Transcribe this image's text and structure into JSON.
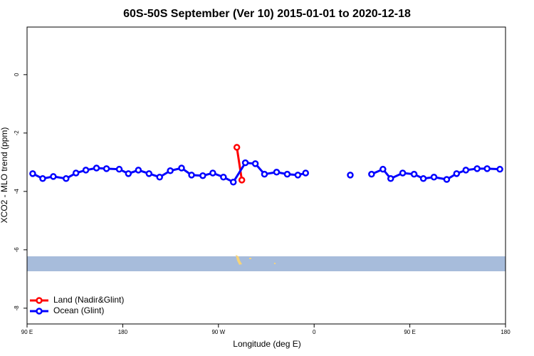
{
  "chart_data": {
    "type": "line",
    "title": "60S-50S September (Ver 10)   2015-01-01 to 2020-12-18",
    "xlabel": "Longitude (deg E)",
    "ylabel": "XCO2 - MLO trend (ppm)",
    "xlim": [
      90,
      540
    ],
    "ylim": [
      -8.54,
      1.63
    ],
    "xticks": [
      {
        "value": 90,
        "label": "90 E"
      },
      180,
      {
        "value": 270,
        "label": "90 W"
      },
      {
        "value": 360,
        "label": "0"
      },
      {
        "value": 450,
        "label": "90 E"
      },
      {
        "value": 540,
        "label": "180"
      }
    ],
    "yticks": [
      0,
      -2,
      -4,
      -6,
      -8
    ],
    "legend": "bottom-left",
    "series": [
      {
        "name": "Land (Nadir&Glint)",
        "color": "#ff0000",
        "x": [
          287.3,
          292
        ],
        "values": [
          -2.49,
          -3.61
        ]
      },
      {
        "name": "Ocean (Glint)",
        "color": "#0000ff",
        "x": [
          95.3,
          104.7,
          114.7,
          126.7,
          136,
          145.3,
          155.3,
          164.7,
          176.7,
          185.3,
          194.7,
          204.7,
          214.7,
          224.7,
          235.3,
          244.7,
          255.3,
          264.7,
          274.7,
          284,
          295.3,
          304.7,
          313.3,
          324.7,
          334.7,
          344.7,
          352,
          373,
          394,
          404,
          414,
          424.7,
          432,
          443.3,
          454,
          462.7,
          472.7,
          484.7,
          494,
          502.7,
          513.3,
          522.7,
          534.7
        ],
        "values": [
          -3.39,
          -3.56,
          -3.49,
          -3.56,
          -3.37,
          -3.27,
          -3.2,
          -3.22,
          -3.24,
          -3.39,
          -3.27,
          -3.39,
          -3.51,
          -3.29,
          -3.2,
          -3.44,
          -3.46,
          -3.37,
          -3.51,
          -3.68,
          -3.02,
          -3.05,
          -3.41,
          -3.34,
          -3.41,
          -3.44,
          -3.37,
          null,
          -3.44,
          null,
          -3.41,
          -3.24,
          -3.56,
          -3.37,
          -3.41,
          -3.56,
          -3.51,
          -3.59,
          -3.39,
          -3.27,
          -3.22,
          -3.22,
          -3.24
        ]
      }
    ]
  }
}
